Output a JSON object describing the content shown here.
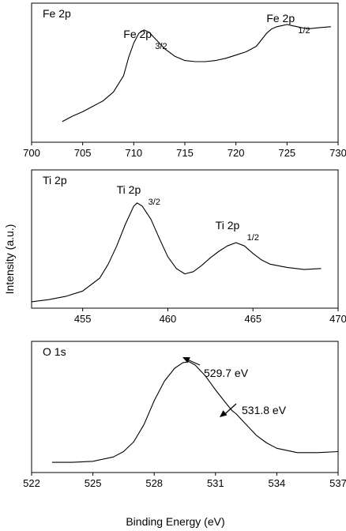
{
  "figure": {
    "xlabel": "Binding Energy (eV)",
    "ylabel": "Intensity (a.u.)"
  },
  "chart_data": [
    {
      "type": "line",
      "panel_label": "Fe 2p",
      "xlim": [
        700,
        730
      ],
      "xticks": [
        "700",
        "705",
        "710",
        "715",
        "720",
        "725",
        "730"
      ],
      "peaks": [
        {
          "main": "Fe 2p",
          "sub": "3/2",
          "x": 711.0
        },
        {
          "main": "Fe 2p",
          "sub": "1/2",
          "x": 725.0
        }
      ],
      "series": [
        {
          "x": [
            703.0,
            704.0,
            705.0,
            706.0,
            707.0,
            708.0,
            709.0,
            709.5,
            710.0,
            710.5,
            711.0,
            711.5,
            712.0,
            713.0,
            714.0,
            715.0,
            716.0,
            717.0,
            718.0,
            719.0,
            720.0,
            721.0,
            722.0,
            722.5,
            723.0,
            723.5,
            724.0,
            724.5,
            725.0,
            725.5,
            726.0,
            727.0,
            728.0,
            729.3
          ],
          "y": [
            0.03,
            0.08,
            0.12,
            0.17,
            0.22,
            0.3,
            0.45,
            0.62,
            0.75,
            0.84,
            0.87,
            0.85,
            0.8,
            0.7,
            0.63,
            0.59,
            0.58,
            0.58,
            0.59,
            0.61,
            0.64,
            0.67,
            0.72,
            0.78,
            0.84,
            0.88,
            0.9,
            0.91,
            0.92,
            0.91,
            0.9,
            0.88,
            0.89,
            0.9
          ]
        }
      ]
    },
    {
      "type": "line",
      "panel_label": "Ti 2p",
      "xlim": [
        452,
        470
      ],
      "xticks": [
        "455",
        "460",
        "465",
        "470"
      ],
      "peaks": [
        {
          "main": "Ti 2p",
          "sub": "3/2",
          "x": 458.2
        },
        {
          "main": "Ti 2p",
          "sub": "1/2",
          "x": 464.0
        }
      ],
      "series": [
        {
          "x": [
            452.0,
            453.0,
            454.0,
            455.0,
            456.0,
            456.5,
            457.0,
            457.5,
            458.0,
            458.2,
            458.5,
            459.0,
            459.5,
            460.0,
            460.5,
            461.0,
            461.5,
            462.0,
            462.5,
            463.0,
            463.5,
            464.0,
            464.5,
            465.0,
            465.5,
            466.0,
            467.0,
            468.0,
            469.0
          ],
          "y": [
            0.03,
            0.05,
            0.08,
            0.13,
            0.25,
            0.38,
            0.55,
            0.75,
            0.92,
            0.95,
            0.92,
            0.8,
            0.62,
            0.45,
            0.34,
            0.29,
            0.31,
            0.37,
            0.44,
            0.5,
            0.55,
            0.58,
            0.55,
            0.48,
            0.42,
            0.38,
            0.35,
            0.33,
            0.34
          ]
        }
      ]
    },
    {
      "type": "line",
      "panel_label": "O 1s",
      "xlim": [
        522,
        537
      ],
      "xticks": [
        "522",
        "525",
        "528",
        "531",
        "534",
        "537"
      ],
      "annotations": [
        {
          "text": "529.7 eV",
          "x": 529.7
        },
        {
          "text": "531.8 eV",
          "x": 531.8
        }
      ],
      "series": [
        {
          "x": [
            523.0,
            524.0,
            525.0,
            526.0,
            526.5,
            527.0,
            527.5,
            528.0,
            528.5,
            529.0,
            529.4,
            529.7,
            530.0,
            530.5,
            531.0,
            531.5,
            531.8,
            532.0,
            532.5,
            533.0,
            533.5,
            534.0,
            535.0,
            536.0,
            537.0
          ],
          "y": [
            0.05,
            0.05,
            0.06,
            0.1,
            0.15,
            0.24,
            0.4,
            0.62,
            0.8,
            0.92,
            0.97,
            0.98,
            0.95,
            0.85,
            0.72,
            0.6,
            0.53,
            0.5,
            0.4,
            0.3,
            0.23,
            0.18,
            0.14,
            0.14,
            0.15
          ]
        }
      ]
    }
  ]
}
